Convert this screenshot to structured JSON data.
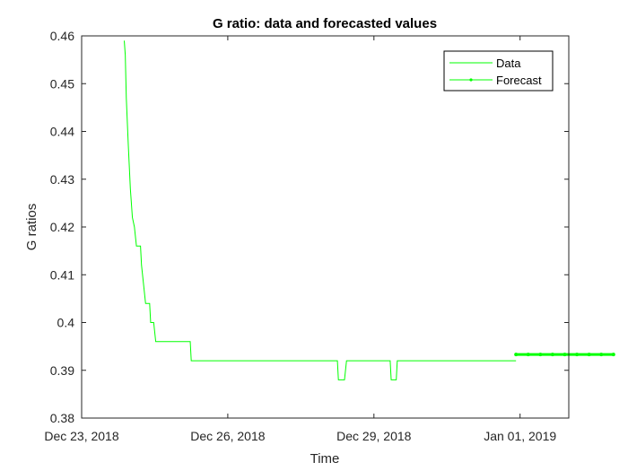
{
  "chart_data": {
    "type": "line",
    "title": "G ratio: data and forecasted values",
    "xlabel": "Time",
    "ylabel": "G ratios",
    "xlim": [
      "2018-12-23",
      "2019-01-02"
    ],
    "ylim": [
      0.38,
      0.46
    ],
    "x_ticks": [
      {
        "date": "2018-12-23",
        "label": "Dec 23, 2018"
      },
      {
        "date": "2018-12-26",
        "label": "Dec 26, 2018"
      },
      {
        "date": "2018-12-29",
        "label": "Dec 29, 2018"
      },
      {
        "date": "2019-01-01",
        "label": "Jan 01, 2019"
      }
    ],
    "y_ticks": [
      "0.38",
      "0.39",
      "0.4",
      "0.41",
      "0.42",
      "0.43",
      "0.44",
      "0.45",
      "0.46"
    ],
    "grid": false,
    "legend_position": "top-right",
    "series": [
      {
        "name": "Data",
        "color": "#00ff00",
        "style": "line",
        "points": [
          [
            "2018-12-23 21:00",
            0.459
          ],
          [
            "2018-12-23 21:30",
            0.456
          ],
          [
            "2018-12-23 22:00",
            0.447
          ],
          [
            "2018-12-23 23:00",
            0.437
          ],
          [
            "2018-12-24 00:00",
            0.428
          ],
          [
            "2018-12-24 01:00",
            0.422
          ],
          [
            "2018-12-24 02:00",
            0.42
          ],
          [
            "2018-12-24 03:00",
            0.416
          ],
          [
            "2018-12-24 05:00",
            0.416
          ],
          [
            "2018-12-24 05:30",
            0.412
          ],
          [
            "2018-12-24 06:30",
            0.408
          ],
          [
            "2018-12-24 07:30",
            0.404
          ],
          [
            "2018-12-24 09:30",
            0.404
          ],
          [
            "2018-12-24 10:00",
            0.4
          ],
          [
            "2018-12-24 11:30",
            0.4
          ],
          [
            "2018-12-24 12:30",
            0.396
          ],
          [
            "2018-12-25 05:30",
            0.396
          ],
          [
            "2018-12-25 06:00",
            0.392
          ],
          [
            "2018-12-28 06:00",
            0.392
          ],
          [
            "2018-12-28 06:30",
            0.388
          ],
          [
            "2018-12-28 09:30",
            0.388
          ],
          [
            "2018-12-28 10:30",
            0.392
          ],
          [
            "2018-12-29 08:00",
            0.392
          ],
          [
            "2018-12-29 08:30",
            0.388
          ],
          [
            "2018-12-29 11:00",
            0.388
          ],
          [
            "2018-12-29 11:30",
            0.392
          ],
          [
            "2018-12-31 22:00",
            0.392
          ]
        ]
      },
      {
        "name": "Forecast",
        "color": "#00ff00",
        "style": "line-marker",
        "points": [
          [
            "2018-12-31 22:00",
            0.3933
          ],
          [
            "2019-01-01 04:00",
            0.3933
          ],
          [
            "2019-01-01 10:00",
            0.3933
          ],
          [
            "2019-01-01 16:00",
            0.3933
          ],
          [
            "2019-01-01 22:00",
            0.3933
          ],
          [
            "2019-01-02 04:00",
            0.3933
          ],
          [
            "2019-01-02 10:00",
            0.3933
          ],
          [
            "2019-01-02 16:00",
            0.3933
          ],
          [
            "2019-01-02 22:00",
            0.3933
          ]
        ]
      }
    ]
  }
}
